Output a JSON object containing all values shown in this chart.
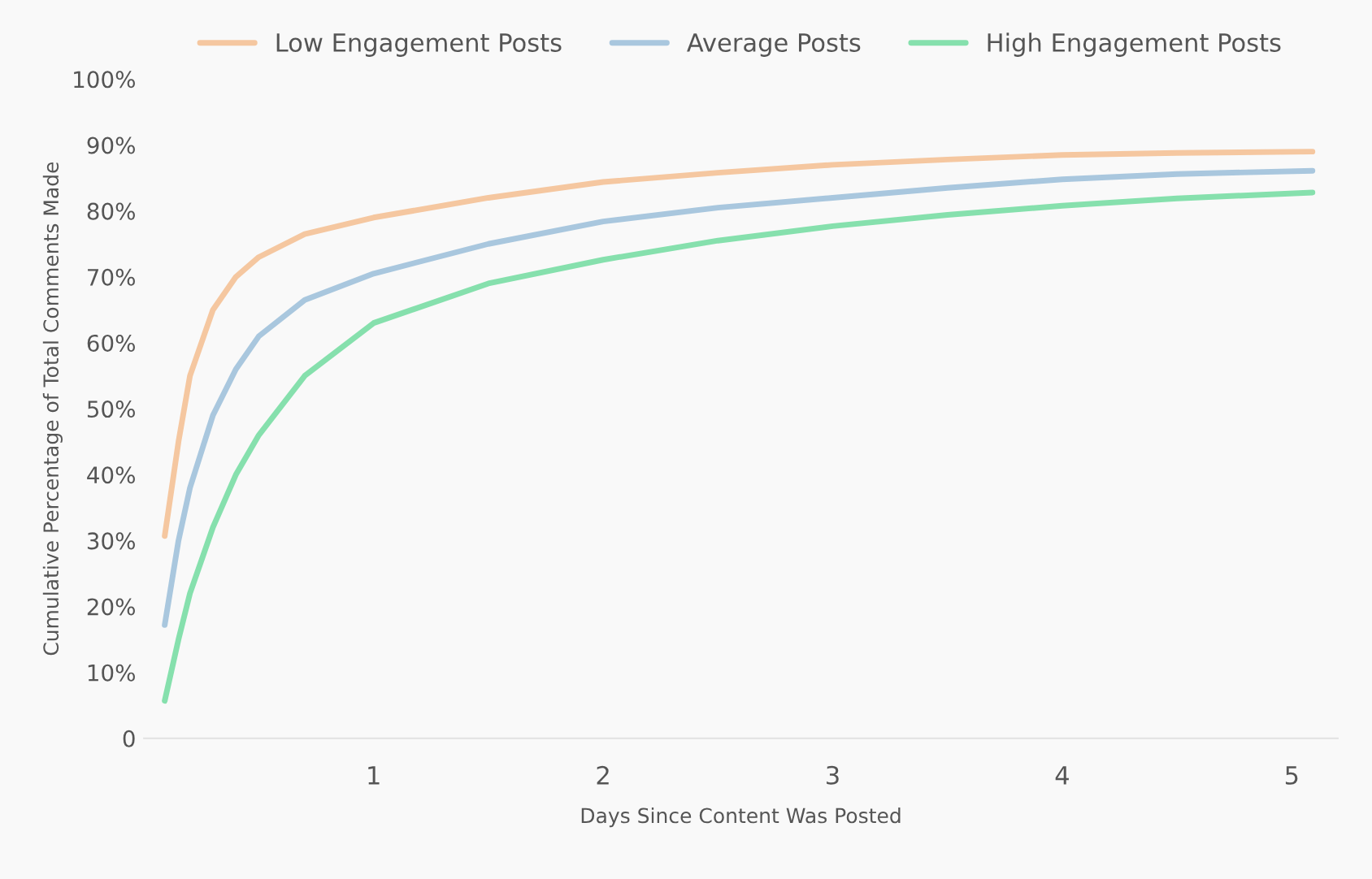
{
  "chart_data": {
    "type": "line",
    "xlabel": "Days Since Content Was Posted",
    "ylabel": "Cumulative Percentage of Total Comments Made",
    "x": [
      0.09,
      0.15,
      0.2,
      0.3,
      0.4,
      0.5,
      0.7,
      1,
      1.5,
      2,
      2.5,
      3,
      3.5,
      4,
      4.5,
      5.09
    ],
    "series": [
      {
        "name": "Low Engagement Posts",
        "color": "#f5c7a0",
        "values": [
          30.7,
          45,
          55,
          65,
          70,
          73,
          76.5,
          79,
          82,
          84.4,
          85.8,
          87,
          87.8,
          88.5,
          88.8,
          89
        ]
      },
      {
        "name": "Average Posts",
        "color": "#a9c7de",
        "values": [
          17.2,
          30,
          38,
          49,
          56,
          61,
          66.5,
          70.5,
          75,
          78.4,
          80.5,
          82,
          83.5,
          84.8,
          85.6,
          86.1
        ]
      },
      {
        "name": "High Engagement Posts",
        "color": "#86e0ad",
        "values": [
          5.7,
          15,
          22,
          32,
          40,
          46,
          55,
          63,
          69,
          72.6,
          75.5,
          77.7,
          79.4,
          80.8,
          81.9,
          82.8
        ]
      }
    ],
    "xlim": [
      0,
      5.2
    ],
    "xticks": [
      1,
      2,
      3,
      4,
      5
    ],
    "ylim": [
      0,
      100
    ],
    "yticks": [
      {
        "value": 0,
        "label": "0"
      },
      {
        "value": 10,
        "label": "10%"
      },
      {
        "value": 20,
        "label": "20%"
      },
      {
        "value": 30,
        "label": "30%"
      },
      {
        "value": 40,
        "label": "40%"
      },
      {
        "value": 50,
        "label": "50%"
      },
      {
        "value": 60,
        "label": "60%"
      },
      {
        "value": 70,
        "label": "70%"
      },
      {
        "value": 80,
        "label": "80%"
      },
      {
        "value": 90,
        "label": "90%"
      },
      {
        "value": 100,
        "label": "100%"
      }
    ],
    "grid": false,
    "legend": "top",
    "marker": "none",
    "line_style": "solid"
  }
}
